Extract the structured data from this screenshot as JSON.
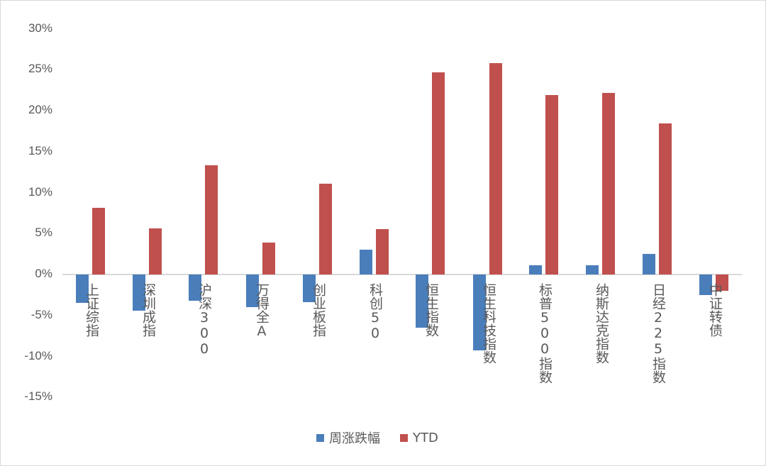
{
  "chart_data": {
    "type": "bar",
    "title": "",
    "xlabel": "",
    "ylabel": "",
    "ylim": [
      -15,
      30
    ],
    "yticks": [
      "30%",
      "25%",
      "20%",
      "15%",
      "10%",
      "5%",
      "0%",
      "-5%",
      "-10%",
      "-15%"
    ],
    "grid": false,
    "legend_position": "bottom",
    "categories": [
      "上证综指",
      "深圳成指",
      "沪深300",
      "万得全A",
      "创业板指",
      "科创50",
      "恒生指数",
      "恒生科技指数",
      "标普500指数",
      "纳斯达克指数",
      "日经225指数",
      "中证转债"
    ],
    "series": [
      {
        "name": "周涨跌幅",
        "color": "#4a7ebb",
        "values": [
          -3.5,
          -4.4,
          -3.2,
          -4.0,
          -3.4,
          3.0,
          -6.5,
          -9.3,
          1.1,
          1.1,
          2.5,
          -2.5
        ]
      },
      {
        "name": "YTD",
        "color": "#c0504d",
        "values": [
          8.1,
          5.6,
          13.3,
          3.9,
          11.1,
          5.5,
          24.7,
          25.8,
          21.9,
          22.2,
          18.4,
          -2.0
        ]
      }
    ]
  },
  "legend": {
    "items": [
      {
        "label": "周涨跌幅",
        "color": "#4a7ebb"
      },
      {
        "label": "YTD",
        "color": "#c0504d"
      }
    ]
  }
}
